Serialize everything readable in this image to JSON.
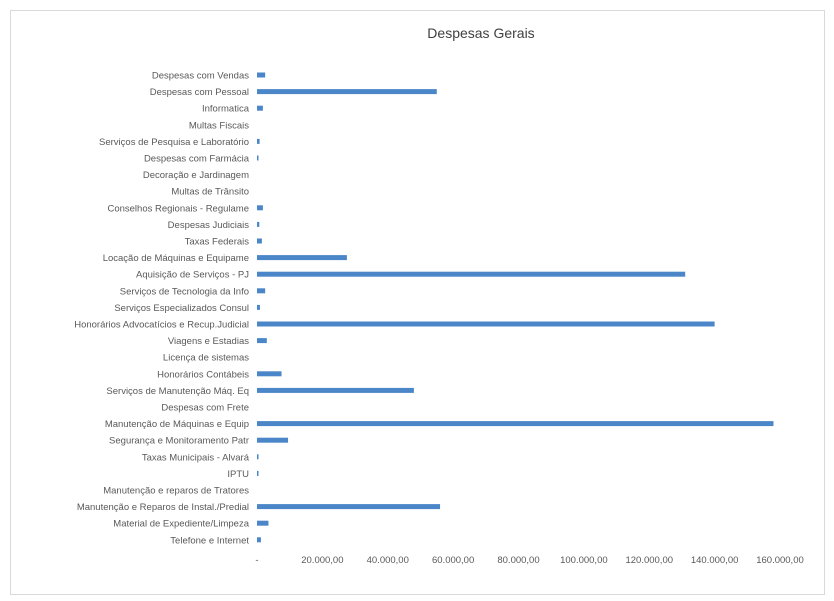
{
  "chart_data": {
    "type": "bar",
    "orientation": "horizontal",
    "title": "Despesas Gerais",
    "xlabel": "",
    "ylabel": "",
    "xlim": [
      0,
      160000
    ],
    "grid": false,
    "legend": "none",
    "bar_color": "#4a86c8",
    "x_ticks": [
      0,
      20000,
      40000,
      60000,
      80000,
      100000,
      120000,
      140000,
      160000
    ],
    "x_tick_labels": [
      "-",
      "20.000,00",
      "40.000,00",
      "60.000,00",
      "80.000,00",
      "100.000,00",
      "120.000,00",
      "140.000,00",
      "160.000,00"
    ],
    "categories": [
      "Despesas com Vendas",
      "Despesas com Pessoal",
      "Informatica",
      "Multas Fiscais",
      "Serviços de Pesquisa e Laboratório",
      "Despesas com Farmácia",
      "Decoração e Jardinagem",
      "Multas de Trânsito",
      "Conselhos Regionais - Regulame",
      "Despesas Judiciais",
      "Taxas Federais",
      "Locação de Máquinas e Equipame",
      "Aquisição de Serviços - PJ",
      "Serviços de Tecnologia da Info",
      "Serviços Especializados Consul",
      "Honorários Advocatícios e Recup.Judicial",
      "Viagens e Estadias",
      "Licença de sistemas",
      "Honorários Contábeis",
      "Serviços de Manutenção Máq. Eq",
      "Despesas com Frete",
      "Manutenção de Máquinas e Equip",
      "Segurança e Monitoramento Patr",
      "Taxas Municipais - Alvará",
      "IPTU",
      "Manutenção e reparos de Tratores",
      "Manutenção e Reparos de Instal./Predial",
      "Material de Expediente/Limpeza",
      "Telefone e Internet"
    ],
    "values": [
      2500,
      55000,
      1800,
      0,
      800,
      400,
      0,
      0,
      1800,
      700,
      1500,
      27500,
      131000,
      2500,
      900,
      140000,
      3000,
      0,
      7500,
      48000,
      0,
      158000,
      9500,
      300,
      200,
      0,
      56000,
      3500,
      1200
    ]
  }
}
